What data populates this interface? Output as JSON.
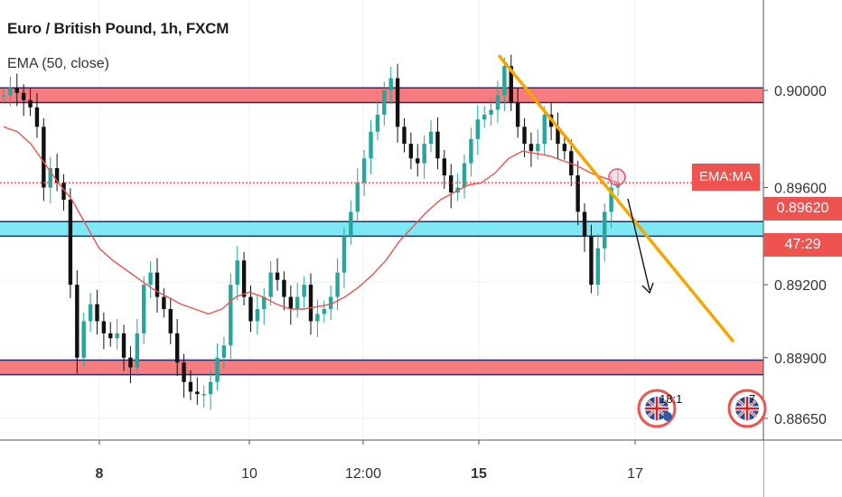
{
  "header": {
    "symbol": "Euro / British Pound, 1h, FXCM",
    "indicator": "EMA (50, close)"
  },
  "chart_data": {
    "type": "candlestick",
    "instrument": "EURGBP",
    "timeframe": "1h",
    "y_ticks": [
      0.9,
      0.896,
      0.892,
      0.889,
      0.8865
    ],
    "y_tick_labels": [
      "0.90000",
      "0.89600",
      "0.89200",
      "0.88900",
      "0.88650"
    ],
    "x_tick_labels": [
      {
        "label": "8",
        "bold": true
      },
      {
        "label": "10",
        "bold": false
      },
      {
        "label": "12:00",
        "bold": false
      },
      {
        "label": "15",
        "bold": true
      },
      {
        "label": "17",
        "bold": false
      }
    ],
    "ylim": [
      0.8857,
      0.9043
    ],
    "current_price": 0.8962,
    "current_price_label": "0.89620",
    "countdown_label": "47:29",
    "ema_tag_label": "EMA:MA",
    "ema_line_level": 0.8962,
    "zones": [
      {
        "from": 0.8995,
        "to": 0.9001,
        "color": "#f77c80"
      },
      {
        "from": 0.894,
        "to": 0.8946,
        "color": "#7fe8f5"
      },
      {
        "from": 0.8883,
        "to": 0.8889,
        "color": "#f77c80"
      }
    ],
    "trendline": {
      "from": [
        0.9014
      ],
      "to": [
        0.8897
      ],
      "color": "#f7a600"
    },
    "close_series": [
      0.8998,
      0.9001,
      0.8999,
      0.8996,
      0.8993,
      0.8985,
      0.896,
      0.8968,
      0.8962,
      0.8955,
      0.892,
      0.889,
      0.8905,
      0.8912,
      0.8905,
      0.89,
      0.8898,
      0.89,
      0.889,
      0.8886,
      0.89,
      0.892,
      0.8925,
      0.8915,
      0.891,
      0.89,
      0.8888,
      0.888,
      0.8876,
      0.8875,
      0.8875,
      0.888,
      0.889,
      0.8895,
      0.892,
      0.893,
      0.8915,
      0.8905,
      0.891,
      0.8915,
      0.8925,
      0.8922,
      0.8915,
      0.891,
      0.8915,
      0.892,
      0.8905,
      0.8908,
      0.891,
      0.8915,
      0.8925,
      0.894,
      0.895,
      0.8962,
      0.8972,
      0.8983,
      0.899,
      0.9,
      0.9005,
      0.8985,
      0.8978,
      0.8972,
      0.897,
      0.8978,
      0.8983,
      0.8972,
      0.8965,
      0.8958,
      0.896,
      0.897,
      0.898,
      0.8988,
      0.899,
      0.8992,
      0.8998,
      0.901,
      0.8995,
      0.8985,
      0.8978,
      0.8975,
      0.8978,
      0.899,
      0.8985,
      0.8978,
      0.8975,
      0.8965,
      0.895,
      0.894,
      0.892,
      0.8935,
      0.895,
      0.896,
      0.8962
    ],
    "ema_series": [
      0.8985,
      0.8983,
      0.8978,
      0.897,
      0.8962,
      0.8955,
      0.8945,
      0.8935,
      0.893,
      0.8926,
      0.8922,
      0.8918,
      0.8915,
      0.8912,
      0.891,
      0.8908,
      0.891,
      0.8915,
      0.8917,
      0.8915,
      0.8912,
      0.891,
      0.891,
      0.8911,
      0.8912,
      0.8915,
      0.8919,
      0.8924,
      0.893,
      0.8938,
      0.8944,
      0.895,
      0.8955,
      0.8958,
      0.8961,
      0.8962,
      0.8966,
      0.8972,
      0.8975,
      0.8974,
      0.8973,
      0.8971,
      0.8969,
      0.8966,
      0.8964,
      0.8962
    ]
  },
  "annotations": {
    "currency_badge_count_1": "18:1",
    "currency_badge_count_2": "7"
  }
}
